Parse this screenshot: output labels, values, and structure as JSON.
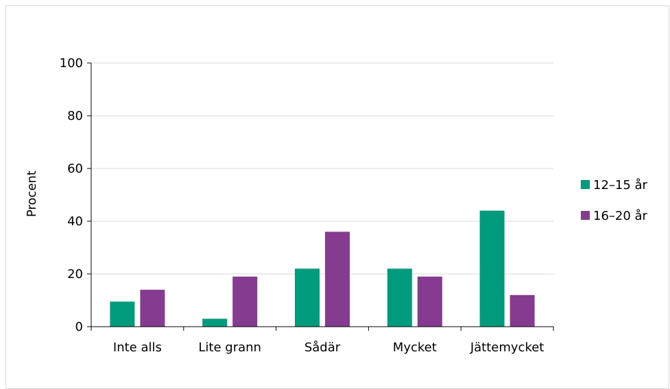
{
  "chart_data": {
    "type": "bar",
    "title": "",
    "xlabel": "",
    "ylabel": "Procent",
    "ylim": [
      0,
      100
    ],
    "yticks": [
      0,
      20,
      40,
      60,
      80,
      100
    ],
    "grid": true,
    "legend_position": "right",
    "categories": [
      "Inte alls",
      "Lite grann",
      "Sådär",
      "Mycket",
      "Jättemycket"
    ],
    "series": [
      {
        "name": "12–15 år",
        "color": "#009B7D",
        "values": [
          9.5,
          3,
          22,
          22,
          44
        ]
      },
      {
        "name": "16–20 år",
        "color": "#853B8F",
        "values": [
          14,
          19,
          36,
          19,
          12
        ]
      }
    ]
  }
}
